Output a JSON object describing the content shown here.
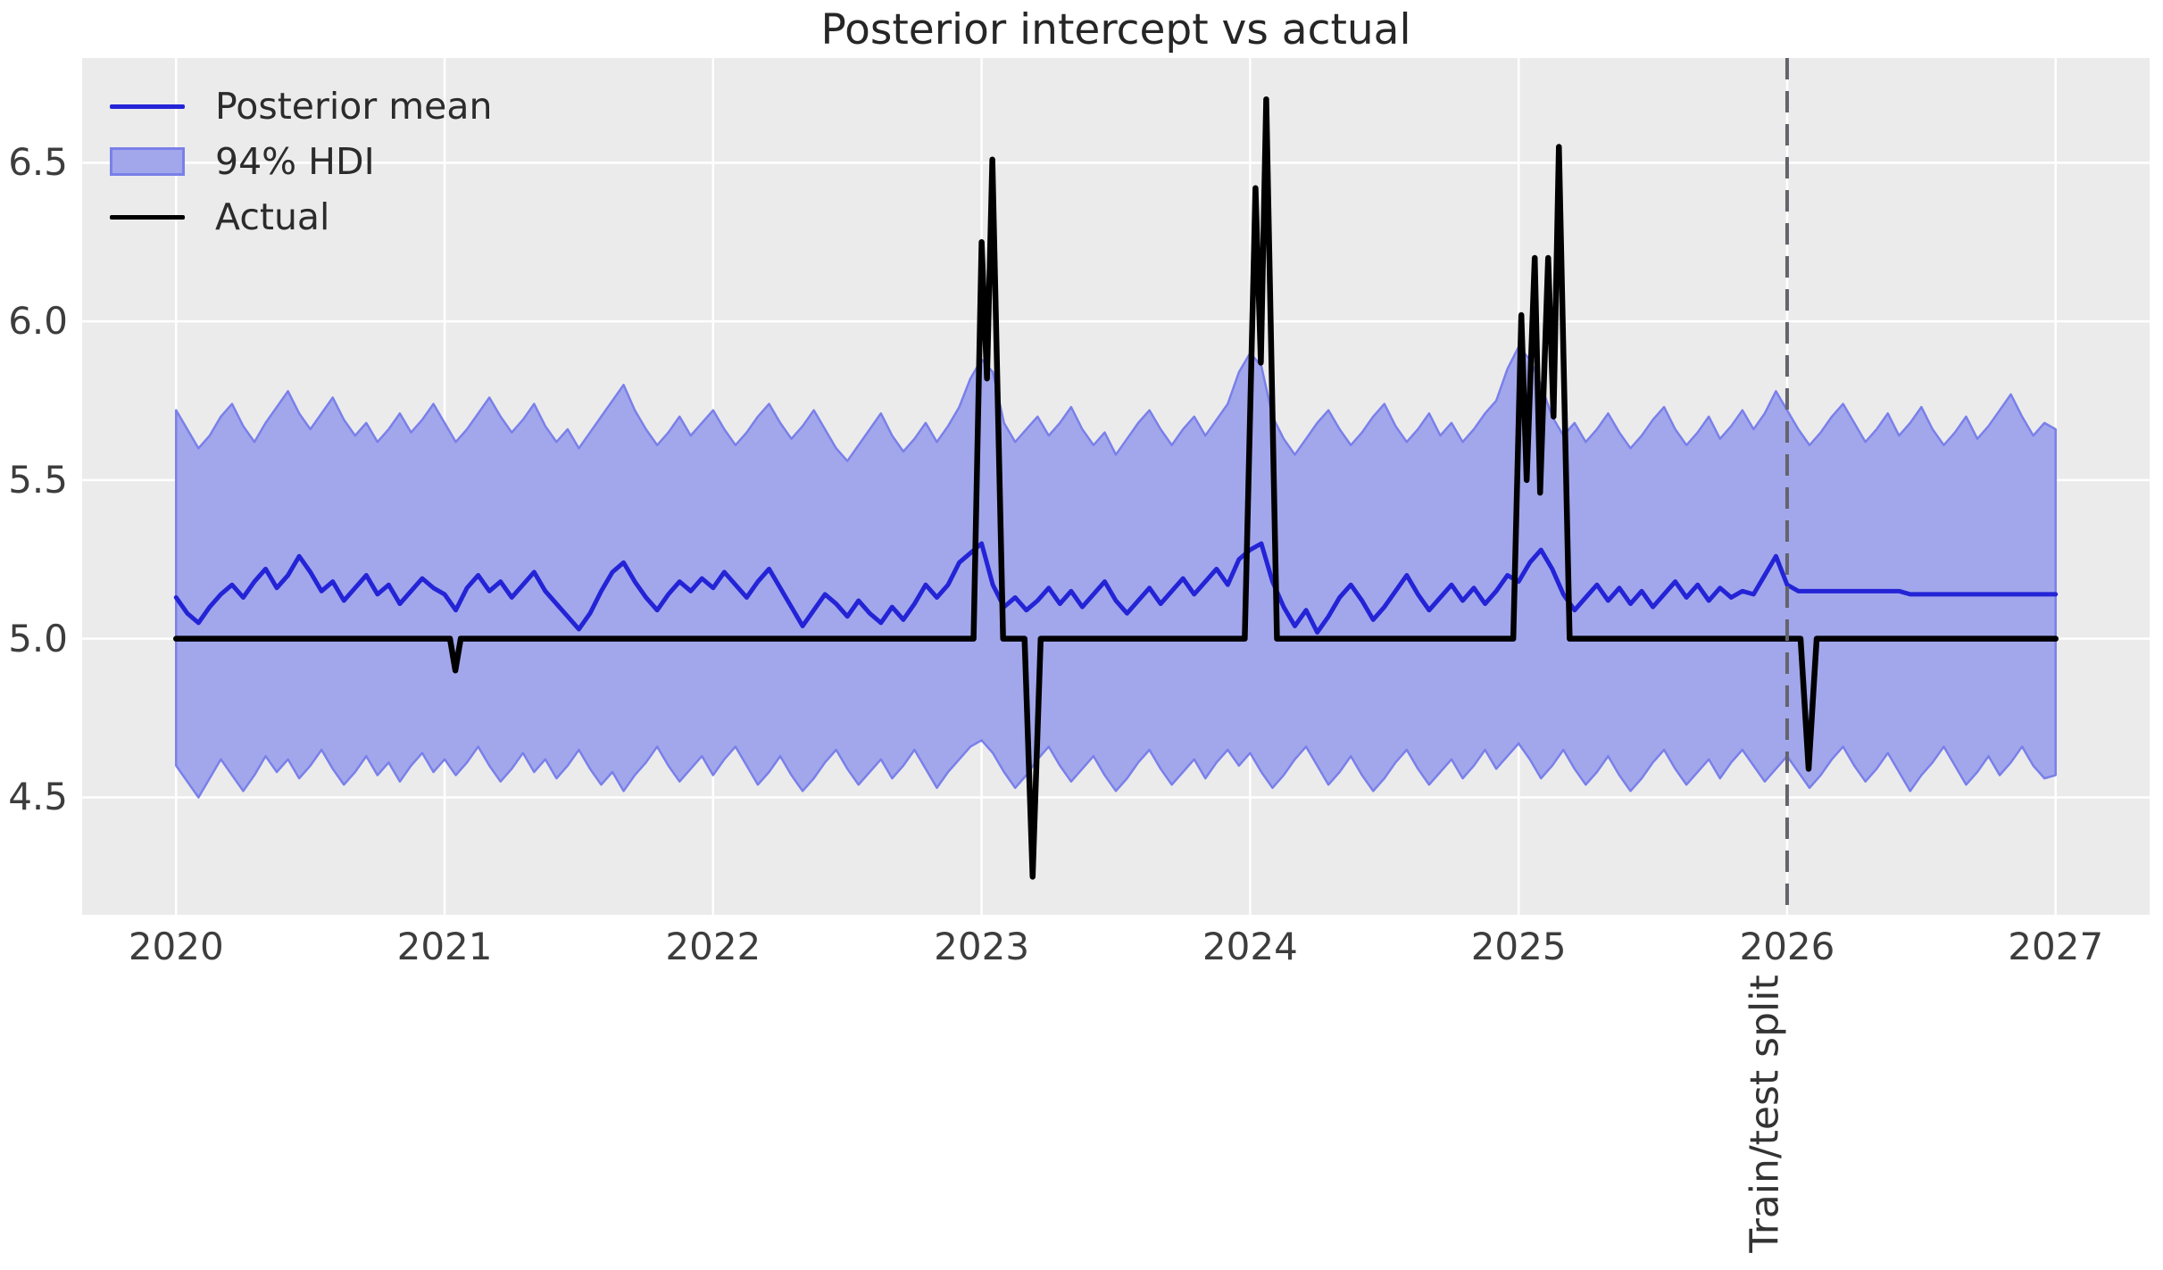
{
  "figure": {
    "title": "Posterior intercept vs actual"
  },
  "legend": {
    "position": "upper left",
    "items": [
      {
        "label": "Posterior mean",
        "type": "line",
        "color": "#2424d6"
      },
      {
        "label": "94% HDI",
        "type": "patch",
        "fill": "#a2a7ec",
        "edge": "#7a80e8"
      },
      {
        "label": "Actual",
        "type": "line",
        "color": "#000000"
      }
    ]
  },
  "split": {
    "x": 2026,
    "label": "Train/test split",
    "color": "#63636b"
  },
  "axes": {
    "bg": "#ebebec",
    "grid_color": "#ffffff",
    "tick_color": "#3d3d3d",
    "x_tick_labels": [
      "2020",
      "2021",
      "2022",
      "2023",
      "2024",
      "2025",
      "2026",
      "2027"
    ],
    "y_tick_labels": [
      "4.5",
      "5.0",
      "5.5",
      "6.0",
      "6.5"
    ]
  },
  "chart_data": {
    "type": "line",
    "title": "Posterior intercept vs actual",
    "xlabel": "",
    "ylabel": "",
    "xlim": [
      2019.65,
      2027.35
    ],
    "ylim": [
      4.13,
      6.83
    ],
    "x_ticks": [
      2020,
      2021,
      2022,
      2023,
      2024,
      2025,
      2026,
      2027
    ],
    "y_ticks": [
      4.5,
      5.0,
      5.5,
      6.0,
      6.5
    ],
    "grid": true,
    "legend_position": "upper left",
    "x_start": 2020.0,
    "x_step": 0.0416667,
    "series": [
      {
        "name": "Posterior mean",
        "color": "#2424d6",
        "width": 5,
        "values": [
          5.13,
          5.08,
          5.05,
          5.1,
          5.14,
          5.17,
          5.13,
          5.18,
          5.22,
          5.16,
          5.2,
          5.26,
          5.21,
          5.15,
          5.18,
          5.12,
          5.16,
          5.2,
          5.14,
          5.17,
          5.11,
          5.15,
          5.19,
          5.16,
          5.14,
          5.09,
          5.16,
          5.2,
          5.15,
          5.18,
          5.13,
          5.17,
          5.21,
          5.15,
          5.11,
          5.07,
          5.03,
          5.08,
          5.15,
          5.21,
          5.24,
          5.18,
          5.13,
          5.09,
          5.14,
          5.18,
          5.15,
          5.19,
          5.16,
          5.21,
          5.17,
          5.13,
          5.18,
          5.22,
          5.16,
          5.1,
          5.04,
          5.09,
          5.14,
          5.11,
          5.07,
          5.12,
          5.08,
          5.05,
          5.1,
          5.06,
          5.11,
          5.17,
          5.13,
          5.17,
          5.24,
          5.27,
          5.3,
          5.17,
          5.1,
          5.13,
          5.09,
          5.12,
          5.16,
          5.11,
          5.15,
          5.1,
          5.14,
          5.18,
          5.12,
          5.08,
          5.12,
          5.16,
          5.11,
          5.15,
          5.19,
          5.14,
          5.18,
          5.22,
          5.17,
          5.25,
          5.28,
          5.3,
          5.18,
          5.1,
          5.04,
          5.09,
          5.02,
          5.07,
          5.13,
          5.17,
          5.12,
          5.06,
          5.1,
          5.15,
          5.2,
          5.14,
          5.09,
          5.13,
          5.17,
          5.12,
          5.16,
          5.11,
          5.15,
          5.2,
          5.18,
          5.24,
          5.28,
          5.22,
          5.14,
          5.09,
          5.13,
          5.17,
          5.12,
          5.16,
          5.11,
          5.15,
          5.1,
          5.14,
          5.18,
          5.13,
          5.17,
          5.12,
          5.16,
          5.13,
          5.15,
          5.14,
          5.2,
          5.26,
          5.17,
          5.15,
          5.15,
          5.15,
          5.15,
          5.15,
          5.15,
          5.15,
          5.15,
          5.15,
          5.15,
          5.14,
          5.14,
          5.14,
          5.14,
          5.14,
          5.14,
          5.14,
          5.14,
          5.14,
          5.14,
          5.14,
          5.14,
          5.14,
          5.14
        ]
      },
      {
        "name": "94% HDI upper",
        "color": "#7a80e8",
        "width": 2.5,
        "values": [
          5.72,
          5.66,
          5.6,
          5.64,
          5.7,
          5.74,
          5.67,
          5.62,
          5.68,
          5.73,
          5.78,
          5.71,
          5.66,
          5.71,
          5.76,
          5.69,
          5.64,
          5.68,
          5.62,
          5.66,
          5.71,
          5.65,
          5.69,
          5.74,
          5.68,
          5.62,
          5.66,
          5.71,
          5.76,
          5.7,
          5.65,
          5.69,
          5.74,
          5.67,
          5.62,
          5.66,
          5.6,
          5.65,
          5.7,
          5.75,
          5.8,
          5.72,
          5.66,
          5.61,
          5.65,
          5.7,
          5.64,
          5.68,
          5.72,
          5.66,
          5.61,
          5.65,
          5.7,
          5.74,
          5.68,
          5.63,
          5.67,
          5.72,
          5.66,
          5.6,
          5.56,
          5.61,
          5.66,
          5.71,
          5.64,
          5.59,
          5.63,
          5.68,
          5.62,
          5.67,
          5.73,
          5.82,
          5.88,
          5.84,
          5.68,
          5.62,
          5.66,
          5.7,
          5.64,
          5.68,
          5.73,
          5.66,
          5.61,
          5.65,
          5.58,
          5.63,
          5.68,
          5.72,
          5.66,
          5.61,
          5.66,
          5.7,
          5.64,
          5.69,
          5.74,
          5.84,
          5.9,
          5.86,
          5.7,
          5.63,
          5.58,
          5.63,
          5.68,
          5.72,
          5.66,
          5.61,
          5.65,
          5.7,
          5.74,
          5.67,
          5.62,
          5.66,
          5.71,
          5.64,
          5.68,
          5.62,
          5.66,
          5.71,
          5.75,
          5.85,
          5.92,
          5.88,
          5.8,
          5.7,
          5.64,
          5.68,
          5.62,
          5.66,
          5.71,
          5.65,
          5.6,
          5.64,
          5.69,
          5.73,
          5.66,
          5.61,
          5.65,
          5.7,
          5.63,
          5.67,
          5.72,
          5.66,
          5.71,
          5.78,
          5.72,
          5.66,
          5.61,
          5.65,
          5.7,
          5.74,
          5.68,
          5.62,
          5.66,
          5.71,
          5.64,
          5.68,
          5.73,
          5.66,
          5.61,
          5.65,
          5.7,
          5.63,
          5.67,
          5.72,
          5.77,
          5.7,
          5.64,
          5.68,
          5.66
        ]
      },
      {
        "name": "94% HDI lower",
        "color": "#7a80e8",
        "width": 2.5,
        "values": [
          4.6,
          4.55,
          4.5,
          4.56,
          4.62,
          4.57,
          4.52,
          4.57,
          4.63,
          4.58,
          4.62,
          4.56,
          4.6,
          4.65,
          4.59,
          4.54,
          4.58,
          4.63,
          4.57,
          4.61,
          4.55,
          4.6,
          4.64,
          4.58,
          4.62,
          4.57,
          4.61,
          4.66,
          4.6,
          4.55,
          4.59,
          4.64,
          4.58,
          4.62,
          4.56,
          4.6,
          4.65,
          4.59,
          4.54,
          4.58,
          4.52,
          4.57,
          4.61,
          4.66,
          4.6,
          4.55,
          4.59,
          4.63,
          4.57,
          4.62,
          4.66,
          4.6,
          4.54,
          4.58,
          4.63,
          4.57,
          4.52,
          4.56,
          4.61,
          4.65,
          4.59,
          4.54,
          4.58,
          4.62,
          4.56,
          4.6,
          4.65,
          4.59,
          4.53,
          4.58,
          4.62,
          4.66,
          4.68,
          4.64,
          4.58,
          4.53,
          4.57,
          4.62,
          4.66,
          4.6,
          4.55,
          4.59,
          4.63,
          4.57,
          4.52,
          4.56,
          4.61,
          4.65,
          4.59,
          4.54,
          4.58,
          4.62,
          4.56,
          4.61,
          4.65,
          4.6,
          4.64,
          4.58,
          4.53,
          4.57,
          4.62,
          4.66,
          4.6,
          4.54,
          4.58,
          4.63,
          4.57,
          4.52,
          4.56,
          4.61,
          4.65,
          4.59,
          4.54,
          4.58,
          4.62,
          4.56,
          4.6,
          4.65,
          4.59,
          4.63,
          4.67,
          4.62,
          4.56,
          4.6,
          4.65,
          4.59,
          4.54,
          4.58,
          4.63,
          4.57,
          4.52,
          4.56,
          4.61,
          4.65,
          4.59,
          4.54,
          4.58,
          4.62,
          4.56,
          4.61,
          4.65,
          4.6,
          4.55,
          4.59,
          4.63,
          4.58,
          4.53,
          4.57,
          4.62,
          4.66,
          4.6,
          4.55,
          4.59,
          4.64,
          4.58,
          4.52,
          4.57,
          4.61,
          4.66,
          4.6,
          4.54,
          4.58,
          4.63,
          4.57,
          4.61,
          4.66,
          4.6,
          4.56,
          4.57
        ]
      },
      {
        "name": "Actual",
        "color": "#000000",
        "width": 6.5,
        "points": [
          [
            2020.0,
            5.0
          ],
          [
            2021.0,
            5.0
          ],
          [
            2021.02,
            5.0
          ],
          [
            2021.04,
            4.9
          ],
          [
            2021.06,
            5.0
          ],
          [
            2022.97,
            5.0
          ],
          [
            2023.0,
            6.25
          ],
          [
            2023.02,
            5.82
          ],
          [
            2023.04,
            6.51
          ],
          [
            2023.08,
            5.0
          ],
          [
            2023.16,
            5.0
          ],
          [
            2023.19,
            4.25
          ],
          [
            2023.22,
            5.0
          ],
          [
            2023.98,
            5.0
          ],
          [
            2024.02,
            6.42
          ],
          [
            2024.04,
            5.87
          ],
          [
            2024.06,
            6.7
          ],
          [
            2024.1,
            5.0
          ],
          [
            2024.98,
            5.0
          ],
          [
            2025.01,
            6.02
          ],
          [
            2025.03,
            5.5
          ],
          [
            2025.06,
            6.2
          ],
          [
            2025.08,
            5.46
          ],
          [
            2025.11,
            6.2
          ],
          [
            2025.13,
            5.7
          ],
          [
            2025.15,
            6.55
          ],
          [
            2025.19,
            5.0
          ],
          [
            2026.05,
            5.0
          ],
          [
            2026.08,
            4.59
          ],
          [
            2026.11,
            5.0
          ],
          [
            2027.0,
            5.0
          ]
        ]
      }
    ],
    "band": {
      "fill": "#a2a7ec",
      "edge": "#7a80e8",
      "label": "94% HDI"
    },
    "annotations": [
      {
        "type": "vline",
        "x": 2026,
        "style": "dashed",
        "label": "Train/test split"
      }
    ]
  }
}
